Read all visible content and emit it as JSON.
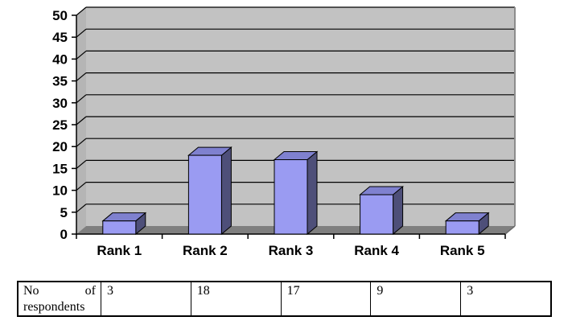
{
  "chart_data": {
    "type": "bar",
    "variant": "3d-column",
    "title": "",
    "xlabel": "",
    "ylabel": "",
    "categories": [
      "Rank 1",
      "Rank 2",
      "Rank 3",
      "Rank 4",
      "Rank 5"
    ],
    "series": [
      {
        "name": "No of respondents",
        "values": [
          3,
          18,
          17,
          9,
          3
        ]
      }
    ],
    "ylim": [
      0,
      50
    ],
    "ytick_step": 5,
    "grid": true,
    "legend": false,
    "colors": {
      "bar_front": "#9A9BF2",
      "bar_top": "#7F81CF",
      "bar_side": "#4E4F79",
      "back_wall": "#C2C2C2",
      "side_wall": "#B5B5B5",
      "floor": "#7F7F7F",
      "gridline": "#000000",
      "wall_right_edge": "#8C8C8C",
      "axis": "#000000",
      "text": "#000000"
    }
  },
  "table": {
    "row_header": "No of respondents",
    "values": [
      "3",
      "18",
      "17",
      "9",
      "3"
    ]
  }
}
